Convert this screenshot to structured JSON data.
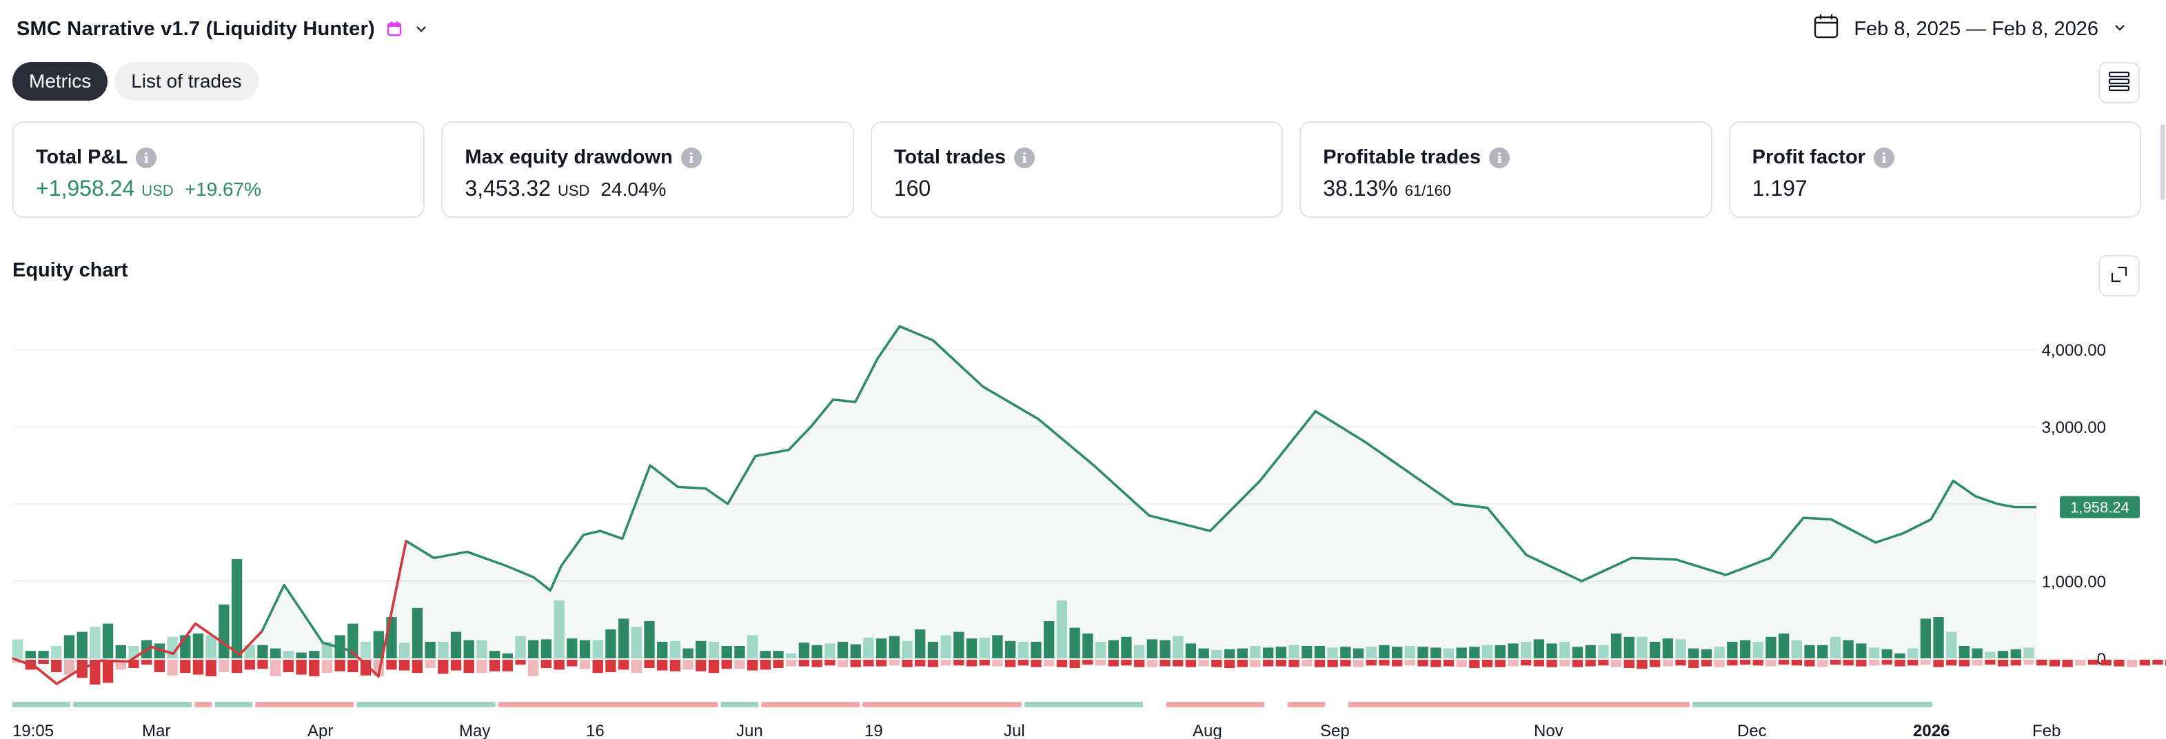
{
  "header": {
    "strategy_title": "SMC Narrative v1.7 (Liquidity Hunter)",
    "date_range": "Feb 8, 2025 — Feb 8, 2026"
  },
  "tabs": [
    {
      "label": "Metrics",
      "active": true
    },
    {
      "label": "List of trades",
      "active": false
    }
  ],
  "cards": {
    "total_pnl": {
      "label": "Total P&L",
      "value": "+1,958.24",
      "unit": "USD",
      "pct": "+19.67%"
    },
    "max_drawdown": {
      "label": "Max equity drawdown",
      "value": "3,453.32",
      "unit": "USD",
      "pct": "24.04%"
    },
    "total_trades": {
      "label": "Total trades",
      "value": "160"
    },
    "profitable_trades": {
      "label": "Profitable trades",
      "value": "38.13%",
      "sub": "61/160"
    },
    "profit_factor": {
      "label": "Profit factor",
      "value": "1.197"
    }
  },
  "equity_section": {
    "title": "Equity chart"
  },
  "colors": {
    "profit": "#2e8b67",
    "loss": "#d9363e",
    "profit_light": "#a8dccb",
    "loss_light": "#f0b8bb",
    "accent": "#e040fb"
  },
  "icons": {
    "calendar": "calendar-icon",
    "info": "info-icon",
    "layout": "layout-icon",
    "expand": "expand-icon",
    "chevron": "chevron-down-icon"
  },
  "chart_data": {
    "type": "line",
    "x": [
      "2025-02-08",
      "2025-02-12",
      "2025-02-16",
      "2025-02-20",
      "2025-02-24",
      "2025-03-01",
      "2025-03-05",
      "2025-03-09",
      "2025-03-13",
      "2025-03-17",
      "2025-03-21",
      "2025-03-25",
      "2025-03-29",
      "2025-04-05",
      "2025-04-10",
      "2025-04-15",
      "2025-04-20",
      "2025-04-25",
      "2025-05-01",
      "2025-05-08",
      "2025-05-13",
      "2025-05-16",
      "2025-05-18",
      "2025-05-22",
      "2025-05-25",
      "2025-05-29",
      "2025-06-03",
      "2025-06-08",
      "2025-06-13",
      "2025-06-17",
      "2025-06-22",
      "2025-06-28",
      "2025-07-02",
      "2025-07-06",
      "2025-07-10",
      "2025-07-14",
      "2025-07-18",
      "2025-07-24",
      "2025-08-02",
      "2025-08-12",
      "2025-08-22",
      "2025-09-01",
      "2025-09-12",
      "2025-09-21",
      "2025-10-01",
      "2025-10-10",
      "2025-10-18",
      "2025-10-26",
      "2025-11-01",
      "2025-11-08",
      "2025-11-18",
      "2025-11-27",
      "2025-12-05",
      "2025-12-14",
      "2025-12-22",
      "2025-12-28",
      "2026-01-02",
      "2026-01-10",
      "2026-01-15",
      "2026-01-20",
      "2026-01-24",
      "2026-01-28",
      "2026-02-01",
      "2026-02-04",
      "2026-02-08"
    ],
    "y": [
      0,
      -100,
      -330,
      -150,
      -30,
      -40,
      150,
      60,
      450,
      250,
      50,
      350,
      950,
      200,
      100,
      -230,
      1520,
      1300,
      1380,
      1200,
      1050,
      880,
      1200,
      1600,
      1650,
      1550,
      2500,
      2220,
      2200,
      2000,
      2620,
      2700,
      3000,
      3350,
      3320,
      3880,
      4300,
      4120,
      3520,
      3100,
      2500,
      1850,
      1650,
      2300,
      3200,
      2800,
      2400,
      2000,
      1950,
      1340,
      1000,
      1300,
      1280,
      1080,
      1300,
      1820,
      1800,
      1500,
      1620,
      1800,
      2300,
      2100,
      2000,
      1960,
      1958.24
    ],
    "y_ticks": [
      "4,000.00",
      "3,000.00",
      "1,000.00",
      "0"
    ],
    "ylim": [
      -600,
      4400
    ],
    "last_value_label": "1,958.24",
    "x_tick_labels": [
      "19:05",
      "Mar",
      "Apr",
      "May",
      "16",
      "Jun",
      "19",
      "Jul",
      "Aug",
      "Sep",
      "Nov",
      "Dec",
      "2026",
      "Feb"
    ],
    "bars": {
      "profit_values": [
        230,
        90,
        90,
        150,
        280,
        320,
        380,
        420,
        160,
        150,
        220,
        180,
        260,
        280,
        300,
        280,
        650,
        1200,
        160,
        160,
        120,
        90,
        70,
        90,
        200,
        280,
        420,
        200,
        330,
        500,
        190,
        610,
        200,
        200,
        320,
        220,
        220,
        90,
        60,
        270,
        220,
        230,
        700,
        240,
        220,
        220,
        350,
        480,
        380,
        450,
        200,
        210,
        120,
        210,
        200,
        150,
        150,
        280,
        90,
        90,
        60,
        190,
        160,
        180,
        200,
        170,
        250,
        240,
        270,
        210,
        350,
        200,
        280,
        320,
        240,
        250,
        280,
        210,
        200,
        200,
        450,
        700,
        370,
        300,
        200,
        220,
        260,
        160,
        230,
        220,
        270,
        180,
        120,
        100,
        110,
        120,
        150,
        130,
        140,
        160,
        150,
        150,
        130,
        140,
        120,
        140,
        160,
        140,
        150,
        140,
        130,
        120,
        130,
        140,
        160,
        160,
        180,
        200,
        230,
        180,
        200,
        140,
        160,
        160,
        300,
        260,
        260,
        200,
        240,
        230,
        120,
        110,
        140,
        200,
        220,
        200,
        260,
        300,
        220,
        160,
        160,
        260,
        220,
        180,
        130,
        110,
        60,
        120,
        480,
        500,
        320,
        150,
        120,
        80,
        90,
        110,
        130
      ],
      "loss_values": [
        40,
        120,
        50,
        150,
        180,
        220,
        300,
        280,
        120,
        100,
        60,
        150,
        190,
        160,
        180,
        200,
        150,
        160,
        120,
        110,
        200,
        150,
        180,
        200,
        160,
        140,
        150,
        190,
        200,
        120,
        130,
        160,
        100,
        170,
        130,
        160,
        160,
        140,
        140,
        60,
        200,
        100,
        120,
        80,
        110,
        160,
        150,
        120,
        160,
        100,
        130,
        140,
        120,
        140,
        160,
        110,
        110,
        130,
        120,
        100,
        80,
        80,
        90,
        70,
        90,
        90,
        80,
        80,
        70,
        90,
        80,
        90,
        70,
        70,
        80,
        70,
        80,
        90,
        70,
        90,
        80,
        90,
        100,
        60,
        70,
        80,
        70,
        90,
        90,
        80,
        80,
        90,
        80,
        90,
        100,
        90,
        90,
        80,
        80,
        90,
        80,
        90,
        90,
        80,
        90,
        70,
        70,
        80,
        70,
        80,
        90,
        80,
        90,
        100,
        90,
        90,
        80,
        70,
        80,
        90,
        80,
        90,
        80,
        70,
        90,
        100,
        110,
        90,
        80,
        70,
        100,
        80,
        90,
        70,
        60,
        70,
        80,
        60,
        70,
        80,
        90,
        60,
        70,
        80,
        70,
        60,
        80,
        70,
        60,
        90,
        70,
        80,
        70,
        60,
        80,
        70,
        60,
        70,
        80,
        90,
        70,
        60,
        70,
        80,
        90,
        70,
        60,
        70
      ]
    }
  }
}
